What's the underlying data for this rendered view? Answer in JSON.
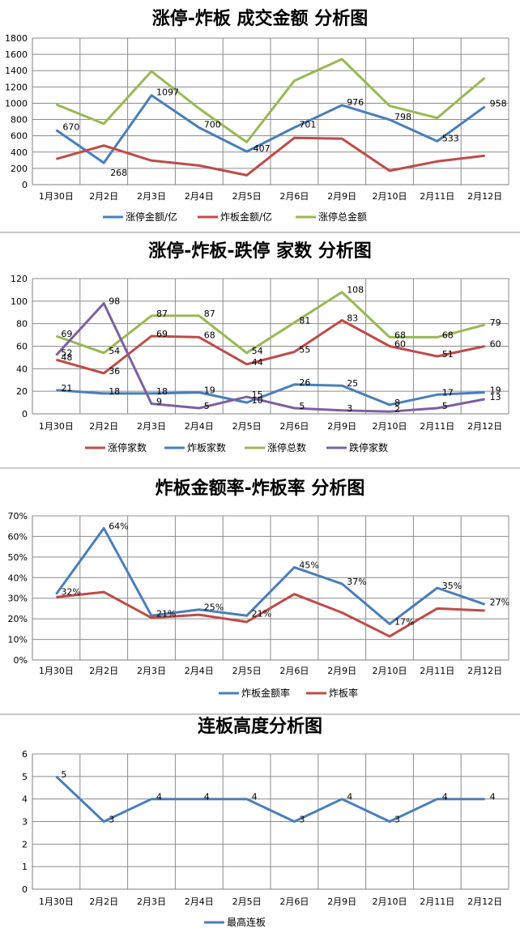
{
  "chart_data": [
    {
      "type": "line",
      "title": "涨停-炸板 成交金额 分析图",
      "categories": [
        "1月30日",
        "2月2日",
        "2月3日",
        "2月4日",
        "2月5日",
        "2月6日",
        "2月9日",
        "2月10日",
        "2月11日",
        "2月12日"
      ],
      "ylim": [
        0,
        1800
      ],
      "yticks": [
        0,
        200,
        400,
        600,
        800,
        1000,
        1200,
        1400,
        1600,
        1800
      ],
      "grid": true,
      "legend": "bottom",
      "series": [
        {
          "name": "涨停金额/亿",
          "color": "#4a7ebb",
          "values": [
            670,
            268,
            1097,
            700,
            407,
            701,
            976,
            798,
            533,
            958
          ],
          "labels": [
            670,
            268,
            1097,
            700,
            407,
            701,
            976,
            798,
            533,
            958
          ]
        },
        {
          "name": "炸板金额/亿",
          "color": "#be4b48",
          "values": [
            315,
            480,
            295,
            235,
            115,
            575,
            565,
            170,
            285,
            355
          ]
        },
        {
          "name": "涨停总金额",
          "color": "#98b954",
          "values": [
            985,
            748,
            1392,
            935,
            522,
            1276,
            1541,
            968,
            818,
            1313
          ]
        }
      ]
    },
    {
      "type": "line",
      "title": "涨停-炸板-跌停 家数 分析图",
      "categories": [
        "1月30日",
        "2月2日",
        "2月3日",
        "2月4日",
        "2月5日",
        "2月6日",
        "2月9日",
        "2月10日",
        "2月11日",
        "2月12日"
      ],
      "ylim": [
        0,
        120
      ],
      "yticks": [
        0,
        20,
        40,
        60,
        80,
        100,
        120
      ],
      "grid": true,
      "legend": "bottom",
      "series": [
        {
          "name": "涨停家数",
          "color": "#be4b48",
          "values": [
            48,
            36,
            69,
            68,
            44,
            55,
            83,
            60,
            51,
            60
          ],
          "labels": [
            48,
            36,
            69,
            68,
            44,
            55,
            83,
            60,
            51,
            60
          ]
        },
        {
          "name": "炸板家数",
          "color": "#4a7ebb",
          "values": [
            21,
            18,
            18,
            19,
            10,
            26,
            25,
            8,
            17,
            19
          ],
          "labels": [
            21,
            18,
            18,
            19,
            10,
            26,
            25,
            8,
            17,
            19
          ]
        },
        {
          "name": "涨停总数",
          "color": "#98b954",
          "values": [
            69,
            54,
            87,
            87,
            54,
            81,
            108,
            68,
            68,
            79
          ],
          "labels": [
            69,
            54,
            87,
            87,
            54,
            81,
            108,
            68,
            68,
            79
          ]
        },
        {
          "name": "跌停家数",
          "color": "#7d60a0",
          "values": [
            52,
            98,
            9,
            5,
            15,
            5,
            3,
            2,
            5,
            13
          ],
          "labels": [
            52,
            98,
            9,
            5,
            15,
            5,
            3,
            2,
            5,
            13
          ]
        }
      ]
    },
    {
      "type": "line",
      "title": "炸板金额率-炸板率 分析图",
      "categories": [
        "1月30日",
        "2月2日",
        "2月3日",
        "2月4日",
        "2月5日",
        "2月6日",
        "2月9日",
        "2月10日",
        "2月11日",
        "2月12日"
      ],
      "ylim": [
        0,
        70
      ],
      "yticks": [
        0,
        10,
        20,
        30,
        40,
        50,
        60,
        70
      ],
      "yunit": "%",
      "grid": true,
      "legend": "bottom",
      "series": [
        {
          "name": "炸板金额率",
          "color": "#4a7ebb",
          "values": [
            32,
            64,
            21.5,
            24.5,
            21.5,
            45,
            37,
            17.5,
            35,
            27
          ],
          "labels": [
            "32%",
            "64%",
            "21%",
            "25%",
            "21%",
            "45%",
            "37%",
            "17%",
            "35%",
            "27%"
          ]
        },
        {
          "name": "炸板率",
          "color": "#be4b48",
          "values": [
            30.5,
            33,
            20.5,
            22,
            18.5,
            32,
            23,
            11.5,
            25,
            24
          ]
        }
      ]
    },
    {
      "type": "line",
      "title": "连板高度分析图",
      "categories": [
        "1月30日",
        "2月2日",
        "2月3日",
        "2月4日",
        "2月5日",
        "2月6日",
        "2月9日",
        "2月10日",
        "2月11日",
        "2月12日"
      ],
      "ylim": [
        0,
        6
      ],
      "yticks": [
        0,
        1,
        2,
        3,
        4,
        5,
        6
      ],
      "grid": true,
      "legend": "bottom",
      "series": [
        {
          "name": "最高连板",
          "color": "#4a7ebb",
          "values": [
            5,
            3,
            4,
            4,
            4,
            3,
            4,
            3,
            4,
            4
          ],
          "labels": [
            5,
            3,
            4,
            4,
            4,
            3,
            4,
            3,
            4,
            4
          ]
        }
      ]
    }
  ]
}
